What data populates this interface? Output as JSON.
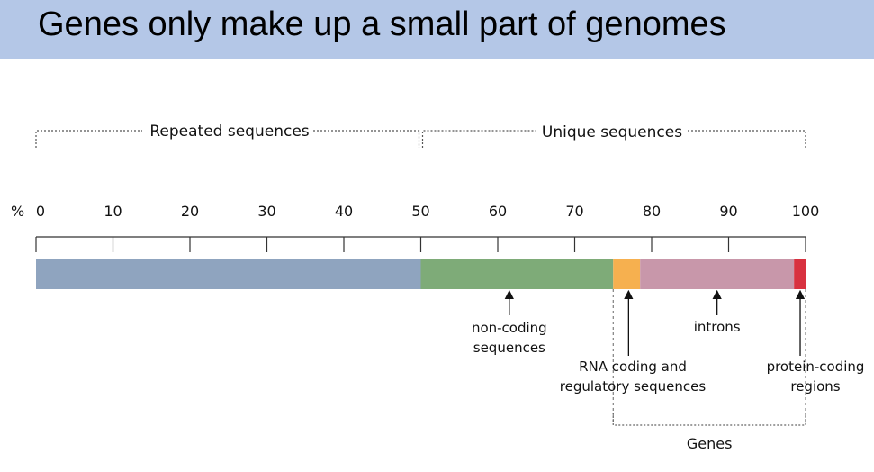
{
  "slide": {
    "title": "Genes only make up a small part of genomes"
  },
  "groups": {
    "repeated": {
      "label": "Repeated sequences",
      "from": 0,
      "to": 50
    },
    "unique": {
      "label": "Unique sequences",
      "from": 50,
      "to": 100
    },
    "genes": {
      "label": "Genes",
      "from": 75,
      "to": 100
    }
  },
  "axis": {
    "unit_label": "%",
    "ticks": [
      "0",
      "10",
      "20",
      "30",
      "40",
      "50",
      "60",
      "70",
      "80",
      "90",
      "100"
    ],
    "min": 0,
    "max": 100
  },
  "segments": [
    {
      "name": "repeated-sequences",
      "from": 0,
      "to": 50,
      "color": "#8fa4bf"
    },
    {
      "name": "non-coding-sequences",
      "from": 50,
      "to": 75,
      "color": "#7eab78"
    },
    {
      "name": "rna-coding-regulatory",
      "from": 75,
      "to": 78.5,
      "color": "#f6b04f"
    },
    {
      "name": "introns",
      "from": 78.5,
      "to": 98.5,
      "color": "#c897aa"
    },
    {
      "name": "protein-coding",
      "from": 98.5,
      "to": 100,
      "color": "#d8313f"
    }
  ],
  "annotations": {
    "noncoding": {
      "line1": "non-coding",
      "line2": "sequences",
      "at": 61.5
    },
    "rna": {
      "line1": "RNA coding and",
      "line2": "regulatory sequences",
      "at": 77
    },
    "introns": {
      "line1": "introns",
      "at": 88.5
    },
    "protein": {
      "line1": "protein-coding",
      "line2": "regions",
      "at": 99.3
    }
  }
}
